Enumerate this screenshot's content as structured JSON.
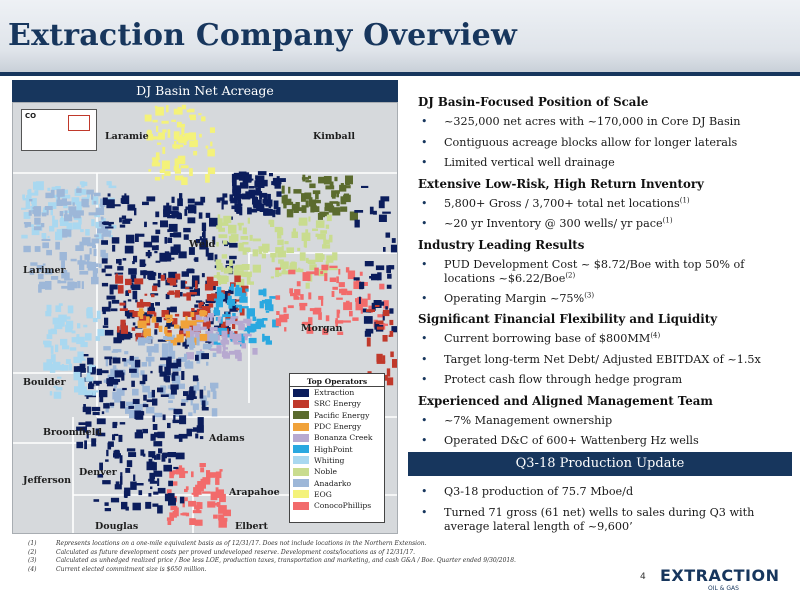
{
  "header": {
    "title": "Extraction Company Overview"
  },
  "map_panel": {
    "banner": "DJ Basin Net Acreage",
    "inset_label": "CO",
    "counties": {
      "laramie": "Laramie",
      "kimball": "Kimball",
      "weld": "Weld",
      "larimer": "Larimer",
      "morgan": "Morgan",
      "boulder": "Boulder",
      "broomfield": "Broomfield",
      "adams": "Adams",
      "jefferson": "Jefferson",
      "denver": "Denver",
      "arapahoe": "Arapahoe",
      "douglas": "Douglas",
      "elbert": "Elbert"
    },
    "legend": {
      "title": "Top Operators",
      "items": [
        {
          "name": "Extraction",
          "color": "#0b1d5c"
        },
        {
          "name": "SRC Energy",
          "color": "#c0392b"
        },
        {
          "name": "Pacific Energy",
          "color": "#5b6b2e"
        },
        {
          "name": "PDC Energy",
          "color": "#f0a23a"
        },
        {
          "name": "Bonanza Creek",
          "color": "#b7a9d0"
        },
        {
          "name": "HighPoint",
          "color": "#2aa8e0"
        },
        {
          "name": "Whiting",
          "color": "#a9d8f0"
        },
        {
          "name": "Noble",
          "color": "#c9dc8f"
        },
        {
          "name": "Anadarko",
          "color": "#9db7d8"
        },
        {
          "name": "EOG",
          "color": "#f4f27a"
        },
        {
          "name": "ConocoPhillips",
          "color": "#f26b6b"
        }
      ]
    }
  },
  "sections": [
    {
      "heading": "DJ Basin-Focused Position of Scale",
      "bullets": [
        {
          "text": "~325,000 net acres with ~170,000 in Core DJ Basin",
          "sup": ""
        },
        {
          "text": "Contiguous acreage blocks allow for longer laterals",
          "sup": ""
        },
        {
          "text": "Limited vertical well drainage",
          "sup": ""
        }
      ]
    },
    {
      "heading": "Extensive Low-Risk, High Return Inventory",
      "bullets": [
        {
          "text": "5,800+ Gross / 3,700+ total net locations",
          "sup": "(1)"
        },
        {
          "text": "~20 yr Inventory @ 300 wells/ yr pace",
          "sup": "(1)"
        }
      ]
    },
    {
      "heading": "Industry Leading Results",
      "bullets": [
        {
          "text": "PUD Development Cost ~ $8.72/Boe with top 50% of locations ~$6.22/Boe",
          "sup": "(2)",
          "two": true
        },
        {
          "text": "Operating Margin ~75%",
          "sup": "(3)"
        }
      ]
    },
    {
      "heading": "Significant Financial Flexibility and Liquidity",
      "bullets": [
        {
          "text": "Current borrowing base of $800MM",
          "sup": "(4)"
        },
        {
          "text": "Target long-term Net Debt/ Adjusted EBITDAX of ~1.5x",
          "sup": ""
        },
        {
          "text": "Protect cash flow through hedge program",
          "sup": ""
        }
      ]
    },
    {
      "heading": "Experienced and Aligned Management Team",
      "bullets": [
        {
          "text": "~7% Management ownership",
          "sup": ""
        },
        {
          "text": "Operated D&C of 600+ Wattenberg Hz wells",
          "sup": ""
        }
      ]
    }
  ],
  "update": {
    "banner": "Q3-18 Production Update",
    "bullets": [
      {
        "text": "Q3-18 production of 75.7 Mboe/d",
        "sup": ""
      },
      {
        "text": "Turned 71 gross (61 net) wells to sales during Q3 with average lateral length of ~9,600’",
        "sup": "",
        "two": true
      }
    ]
  },
  "footnotes": [
    {
      "num": "(1)",
      "text": "Represents locations on a one-mile equivalent basis as of 12/31/17. Does not include locations in the Northern Extension."
    },
    {
      "num": "(2)",
      "text": "Calculated as future development costs per proved undeveloped reserve. Development costs/locations as of 12/31/17."
    },
    {
      "num": "(3)",
      "text": "Calculated as unhedged realized price / Boe less LOE, production taxes, transportation and marketing, and cash G&A / Boe. Quarter ended 9/30/2018."
    },
    {
      "num": "(4)",
      "text": "Current elected commitment size is $650 million."
    }
  ],
  "footer": {
    "page_number": "4",
    "logo_text": "EXTRACTION",
    "logo_sub": "OIL & GAS"
  }
}
